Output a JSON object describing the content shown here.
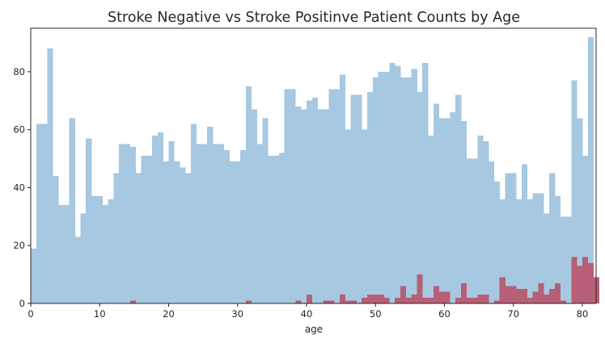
{
  "chart_data": {
    "type": "bar",
    "title": "Stroke Negative vs Stroke Positinve Patient Counts by Age",
    "xlabel": "age",
    "ylabel": "",
    "xlim": [
      0,
      82
    ],
    "ylim": [
      0,
      95
    ],
    "x_ticks": [
      0,
      10,
      20,
      30,
      40,
      50,
      60,
      70,
      80
    ],
    "y_ticks": [
      0,
      20,
      40,
      60,
      80
    ],
    "grid": false,
    "legend": "none",
    "bin_width": 0.8,
    "series": [
      {
        "color": "#a6c8e1",
        "bins": [
          [
            0.0,
            19
          ],
          [
            0.8,
            62
          ],
          [
            1.6,
            62
          ],
          [
            2.4,
            88
          ],
          [
            3.2,
            44
          ],
          [
            4.0,
            34
          ],
          [
            4.8,
            34
          ],
          [
            5.6,
            64
          ],
          [
            6.4,
            23
          ],
          [
            7.2,
            31
          ],
          [
            8.0,
            57
          ],
          [
            8.8,
            37
          ],
          [
            9.6,
            37
          ],
          [
            10.4,
            34
          ],
          [
            11.2,
            36
          ],
          [
            12.0,
            45
          ],
          [
            12.8,
            55
          ],
          [
            13.6,
            55
          ],
          [
            14.4,
            54
          ],
          [
            15.2,
            45
          ],
          [
            16.0,
            51
          ],
          [
            16.8,
            51
          ],
          [
            17.6,
            58
          ],
          [
            18.4,
            59
          ],
          [
            19.2,
            49
          ],
          [
            20.0,
            56
          ],
          [
            20.8,
            49
          ],
          [
            21.6,
            47
          ],
          [
            22.4,
            45
          ],
          [
            23.2,
            62
          ],
          [
            24.0,
            55
          ],
          [
            24.8,
            55
          ],
          [
            25.6,
            61
          ],
          [
            26.4,
            55
          ],
          [
            27.2,
            55
          ],
          [
            28.0,
            53
          ],
          [
            28.8,
            49
          ],
          [
            29.6,
            49
          ],
          [
            30.4,
            53
          ],
          [
            31.2,
            75
          ],
          [
            32.0,
            67
          ],
          [
            32.8,
            55
          ],
          [
            33.6,
            64
          ],
          [
            34.4,
            51
          ],
          [
            35.2,
            51
          ],
          [
            36.0,
            52
          ],
          [
            36.8,
            74
          ],
          [
            37.6,
            74
          ],
          [
            38.4,
            68
          ],
          [
            39.2,
            67
          ],
          [
            40.0,
            70
          ],
          [
            40.8,
            71
          ],
          [
            41.6,
            67
          ],
          [
            42.4,
            67
          ],
          [
            43.2,
            74
          ],
          [
            44.0,
            74
          ],
          [
            44.8,
            79
          ],
          [
            45.6,
            60
          ],
          [
            46.4,
            72
          ],
          [
            47.2,
            72
          ],
          [
            48.0,
            60
          ],
          [
            48.8,
            73
          ],
          [
            49.6,
            78
          ],
          [
            50.4,
            80
          ],
          [
            51.2,
            80
          ],
          [
            52.0,
            83
          ],
          [
            52.8,
            82
          ],
          [
            53.6,
            78
          ],
          [
            54.4,
            78
          ],
          [
            55.2,
            81
          ],
          [
            56.0,
            73
          ],
          [
            56.8,
            83
          ],
          [
            57.6,
            58
          ],
          [
            58.4,
            69
          ],
          [
            59.2,
            64
          ],
          [
            60.0,
            64
          ],
          [
            60.8,
            66
          ],
          [
            61.6,
            72
          ],
          [
            62.4,
            63
          ],
          [
            63.2,
            50
          ],
          [
            64.0,
            50
          ],
          [
            64.8,
            58
          ],
          [
            65.6,
            56
          ],
          [
            66.4,
            49
          ],
          [
            67.2,
            42
          ],
          [
            68.0,
            36
          ],
          [
            68.8,
            45
          ],
          [
            69.6,
            45
          ],
          [
            70.4,
            36
          ],
          [
            71.2,
            48
          ],
          [
            72.0,
            36
          ],
          [
            72.8,
            38
          ],
          [
            73.6,
            38
          ],
          [
            74.4,
            31
          ],
          [
            75.2,
            45
          ],
          [
            76.0,
            37
          ],
          [
            76.8,
            30
          ],
          [
            77.6,
            30
          ],
          [
            78.4,
            77
          ],
          [
            79.2,
            64
          ],
          [
            80.0,
            51
          ],
          [
            80.8,
            92
          ]
        ]
      },
      {
        "color": "#b65f76",
        "bins": [
          [
            14.4,
            1
          ],
          [
            31.2,
            1
          ],
          [
            38.4,
            1
          ],
          [
            40.0,
            3
          ],
          [
            42.4,
            1
          ],
          [
            43.2,
            1
          ],
          [
            44.8,
            3
          ],
          [
            45.6,
            1
          ],
          [
            46.4,
            1
          ],
          [
            48.0,
            2
          ],
          [
            48.8,
            3
          ],
          [
            49.6,
            3
          ],
          [
            50.4,
            3
          ],
          [
            51.2,
            2
          ],
          [
            52.8,
            2
          ],
          [
            53.6,
            6
          ],
          [
            54.4,
            2
          ],
          [
            55.2,
            3
          ],
          [
            56.0,
            10
          ],
          [
            56.8,
            2
          ],
          [
            57.6,
            2
          ],
          [
            58.4,
            6
          ],
          [
            59.2,
            4
          ],
          [
            60.0,
            4
          ],
          [
            61.6,
            2
          ],
          [
            62.4,
            7
          ],
          [
            63.2,
            2
          ],
          [
            64.0,
            2
          ],
          [
            64.8,
            3
          ],
          [
            65.6,
            3
          ],
          [
            67.2,
            1
          ],
          [
            68.0,
            9
          ],
          [
            68.8,
            6
          ],
          [
            69.6,
            6
          ],
          [
            70.4,
            5
          ],
          [
            71.2,
            5
          ],
          [
            72.0,
            2
          ],
          [
            72.8,
            4
          ],
          [
            73.6,
            7
          ],
          [
            74.4,
            3
          ],
          [
            75.2,
            5
          ],
          [
            76.0,
            7
          ],
          [
            76.8,
            1
          ],
          [
            78.4,
            16
          ],
          [
            79.2,
            13
          ],
          [
            80.0,
            16
          ],
          [
            80.8,
            14
          ],
          [
            81.6,
            9
          ]
        ]
      }
    ]
  }
}
